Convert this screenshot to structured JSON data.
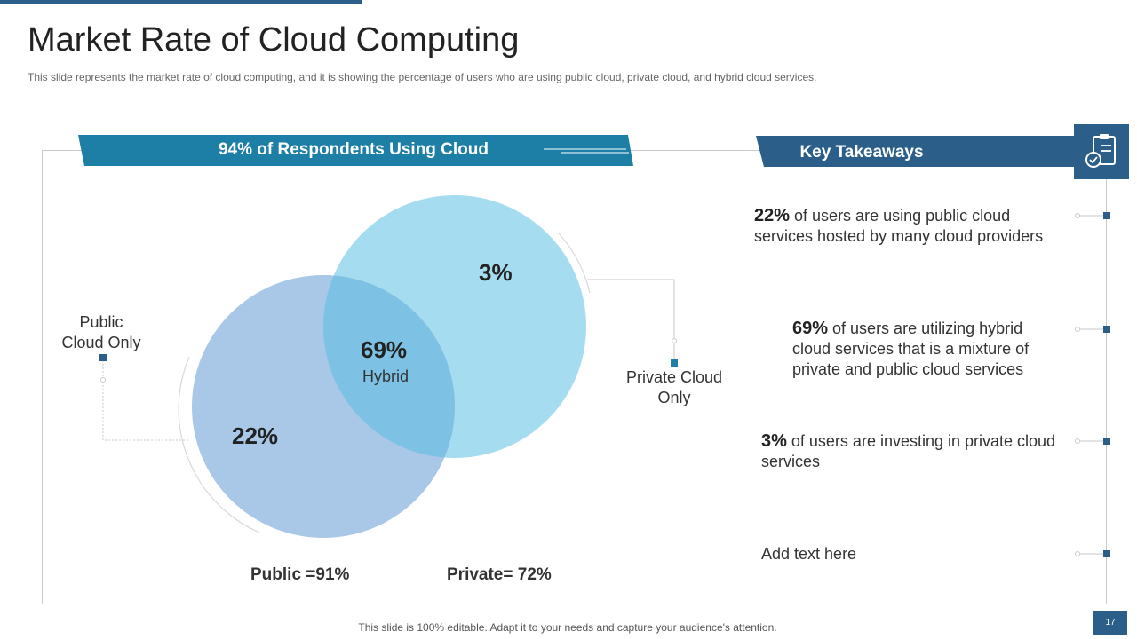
{
  "slide": {
    "title": "Market Rate of Cloud Computing",
    "subtitle": "This slide represents the market rate of cloud computing, and it is showing the percentage of users who are using public cloud, private  cloud, and hybrid cloud services.",
    "footer": "This slide is 100% editable. Adapt it to your needs and capture your audience's attention.",
    "page_number": "17"
  },
  "diagram": {
    "banner": "94% of Respondents Using Cloud",
    "public_label": "Public\nCloud Only",
    "private_label": "Private Cloud\nOnly",
    "public_only_pct": "22%",
    "private_only_pct": "3%",
    "hybrid_pct": "69%",
    "hybrid_label": "Hybrid",
    "public_total": "Public =91%",
    "private_total": "Private= 72%",
    "colors": {
      "public_circle": "#a9c7e6",
      "private_circle": "#a6dcef",
      "overlap": "#7dc2e4",
      "banner": "#1e7fa6"
    }
  },
  "takeaways": {
    "title": "Key Takeaways",
    "icon": "clipboard-check-icon",
    "items": [
      {
        "pct": "22%",
        "text": " of users are using public cloud services hosted by many cloud providers"
      },
      {
        "pct": "69%",
        "text": " of users are utilizing hybrid cloud services that is a mixture of private and public cloud services"
      },
      {
        "pct": "3%",
        "text": " of users are investing in private cloud services"
      },
      {
        "pct": "",
        "text": "Add text here"
      }
    ]
  }
}
